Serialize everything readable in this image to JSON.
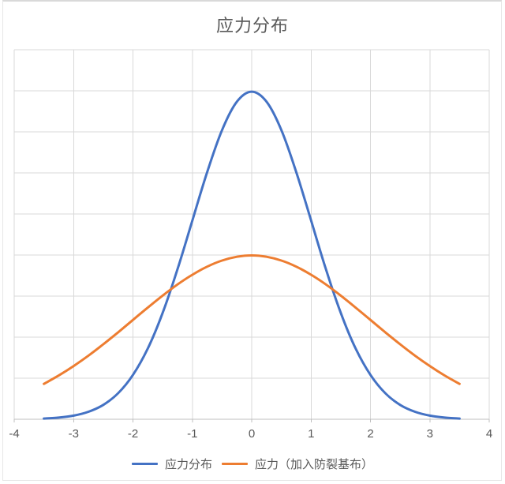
{
  "chart_data": {
    "type": "line",
    "title": "应力分布",
    "x": [
      -3.5,
      -3.25,
      -3.0,
      -2.75,
      -2.5,
      -2.25,
      -2.0,
      -1.75,
      -1.5,
      -1.25,
      -1.0,
      -0.75,
      -0.5,
      -0.25,
      0,
      0.25,
      0.5,
      0.75,
      1.0,
      1.25,
      1.5,
      1.75,
      2.0,
      2.25,
      2.5,
      2.75,
      3.0,
      3.25,
      3.5
    ],
    "series": [
      {
        "name": "应力分布",
        "color": "#4472C4",
        "values": [
          0.0009,
          0.002,
          0.0044,
          0.0091,
          0.0175,
          0.0317,
          0.054,
          0.0862,
          0.1295,
          0.1826,
          0.242,
          0.3011,
          0.3521,
          0.3867,
          0.3989,
          0.3867,
          0.3521,
          0.3011,
          0.242,
          0.1826,
          0.1295,
          0.0862,
          0.054,
          0.0317,
          0.0175,
          0.0091,
          0.0044,
          0.002,
          0.0009
        ]
      },
      {
        "name": "应力（加入防裂基布）",
        "color": "#ED7D31",
        "values": [
          0.0431,
          0.0533,
          0.0648,
          0.0775,
          0.0913,
          0.1059,
          0.121,
          0.136,
          0.1506,
          0.1641,
          0.176,
          0.1859,
          0.1933,
          0.1979,
          0.1995,
          0.1979,
          0.1933,
          0.1859,
          0.176,
          0.1641,
          0.1506,
          0.136,
          0.121,
          0.1059,
          0.0913,
          0.0775,
          0.0648,
          0.0533,
          0.0431
        ]
      }
    ],
    "xlabel": "",
    "ylabel": "",
    "xlim": [
      -4,
      4
    ],
    "ylim": [
      0,
      0.45
    ],
    "x_ticks": [
      -4,
      -3,
      -2,
      -1,
      0,
      1,
      2,
      3,
      4
    ],
    "x_tick_labels": [
      "-4",
      "-3",
      "-2",
      "-1",
      "0",
      "1",
      "2",
      "3",
      "4"
    ],
    "y_grid_step": 0.05,
    "y_tick_labels_visible": false,
    "grid": true,
    "legend_position": "bottom",
    "colors": {
      "gridline": "#D9D9D9",
      "axis_line": "#BFBFBF",
      "text": "#595959",
      "background": "#FFFFFF"
    }
  }
}
